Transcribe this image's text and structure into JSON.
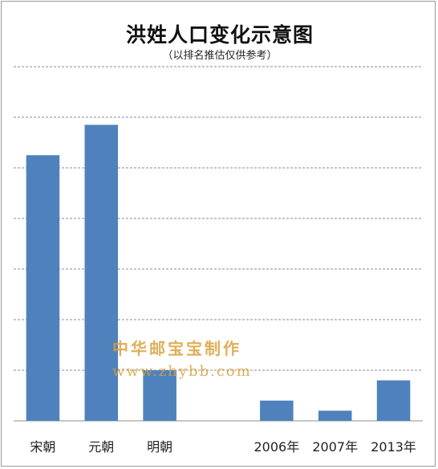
{
  "chart_data": {
    "type": "bar",
    "title": "洪姓人口变化示意图",
    "subtitle": "（以排名推估仅供参考）",
    "categories": [
      "宋朝",
      "元朝",
      "明朝",
      "",
      "2006年",
      "2007年",
      "2013年"
    ],
    "values": [
      5.25,
      5.85,
      1.0,
      0,
      0.4,
      0.2,
      0.8
    ],
    "ylim": [
      0,
      7
    ],
    "grid": true,
    "bar_color": "#4f81bd",
    "gridline_color": "#8c8c8c"
  },
  "watermark": {
    "line1": "中华邮宝宝制作",
    "line2": "www.zhybb.com"
  }
}
